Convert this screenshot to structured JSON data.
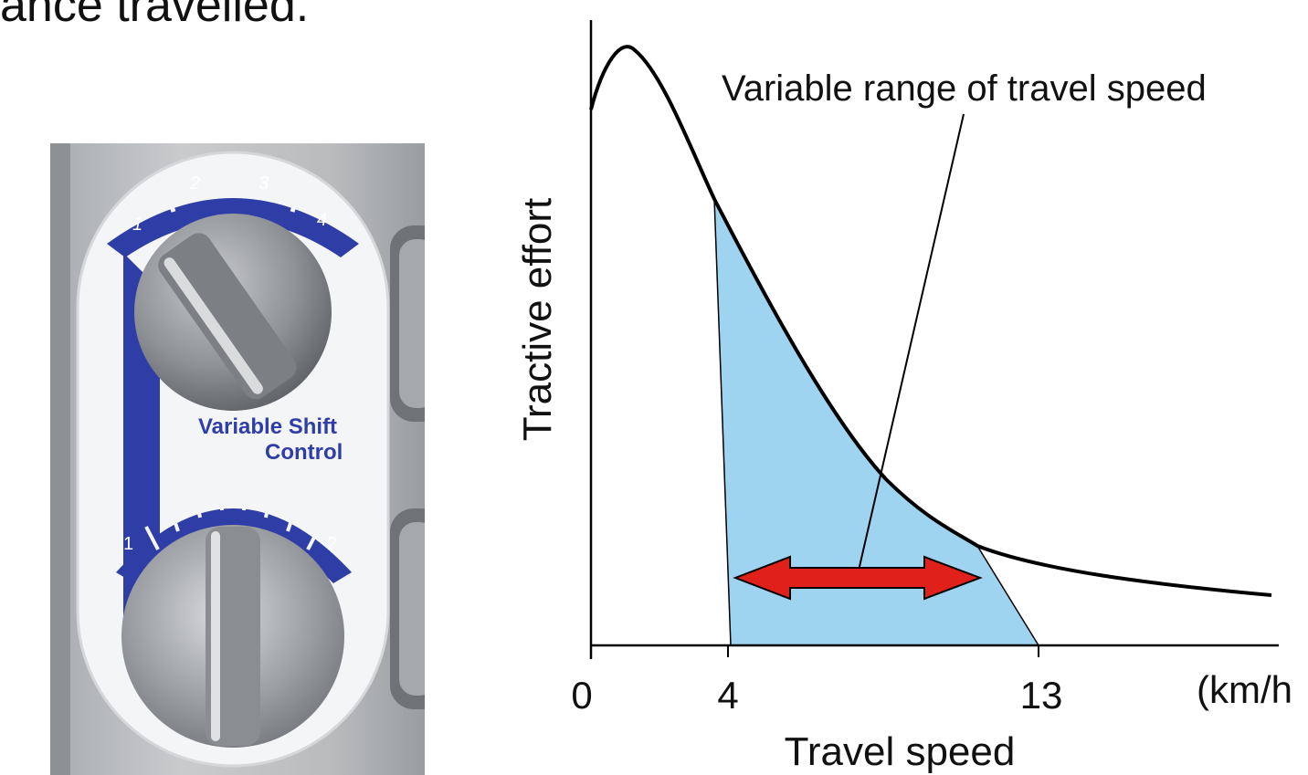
{
  "header": {
    "caption_fragment": "ance travelled."
  },
  "panel": {
    "label_line1": "Variable Shift",
    "label_line2": "Control",
    "top_dial_marks": [
      "1",
      "2",
      "3",
      "4"
    ],
    "bottom_dial_marks": [
      "1",
      "2"
    ],
    "accent_color": "#2f3ea6"
  },
  "chart_data": {
    "type": "area",
    "xlabel": "Travel speed",
    "ylabel": "Tractive effort",
    "x_unit": "(km/h",
    "x_ticks": [
      "0",
      "4",
      "13"
    ],
    "annotation": "Variable range of travel speed",
    "range": [
      4,
      13
    ],
    "fill_color": "#9fd4f0",
    "arrow_color": "#e0201b",
    "curve_color": "#000000"
  }
}
